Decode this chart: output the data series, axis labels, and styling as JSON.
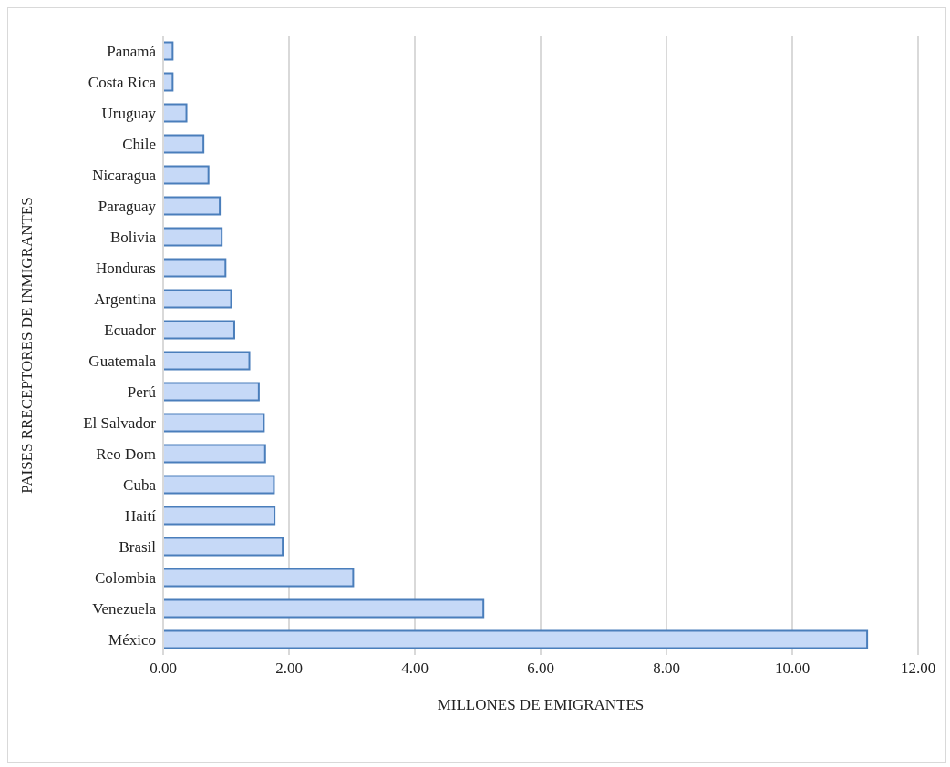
{
  "chart_data": {
    "type": "bar",
    "orientation": "horizontal",
    "xlabel": "MILLONES DE EMIGRANTES",
    "ylabel": "PAISES RRECEPTORES DE INMIGRANTES",
    "categories": [
      "Panamá",
      "Costa Rica",
      "Uruguay",
      "Chile",
      "Nicaragua",
      "Paraguay",
      "Bolivia",
      "Honduras",
      "Argentina",
      "Ecuador",
      "Guatemala",
      "Perú",
      "El Salvador",
      "Reo Dom",
      "Cuba",
      "Haití",
      "Brasil",
      "Colombia",
      "Venezuela",
      "México"
    ],
    "values": [
      0.15,
      0.15,
      0.37,
      0.64,
      0.72,
      0.9,
      0.93,
      0.99,
      1.08,
      1.13,
      1.37,
      1.52,
      1.6,
      1.62,
      1.76,
      1.77,
      1.9,
      3.02,
      5.09,
      11.19
    ],
    "color": "#c6d9f7",
    "xlim": [
      0,
      12
    ],
    "xticks": [
      {
        "value": 0,
        "label": "0.00"
      },
      {
        "value": 2,
        "label": "2.00"
      },
      {
        "value": 4,
        "label": "4.00"
      },
      {
        "value": 6,
        "label": "6.00"
      },
      {
        "value": 8,
        "label": "8.00"
      },
      {
        "value": 10,
        "label": "10.00"
      },
      {
        "value": 12,
        "label": "12.00"
      }
    ],
    "grid": "x",
    "legend": false
  }
}
